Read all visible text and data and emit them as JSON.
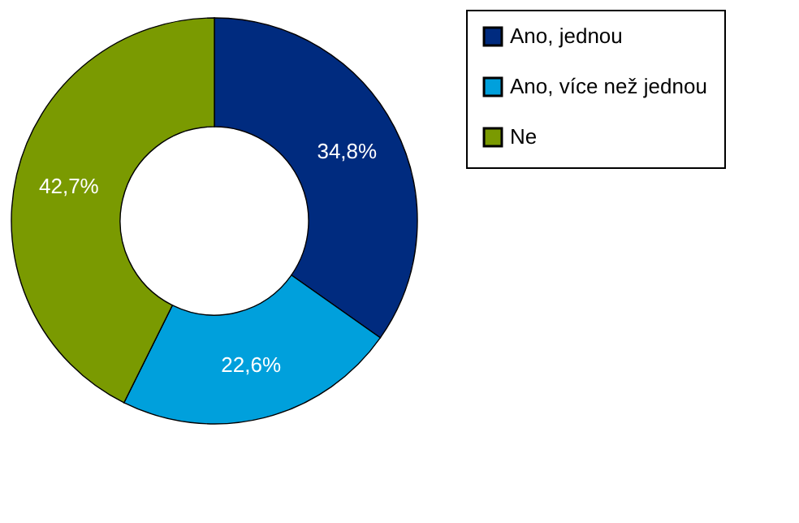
{
  "chart_data": {
    "type": "donut",
    "categories": [
      "Ano, jednou",
      "Ano, více než jednou",
      "Ne"
    ],
    "values": [
      34.8,
      22.6,
      42.7
    ],
    "colors": [
      "#002b7f",
      "#00a0dc",
      "#7a9a01"
    ],
    "value_labels": [
      "34,8%",
      "22,6%",
      "42,7%"
    ],
    "legend": "right"
  }
}
